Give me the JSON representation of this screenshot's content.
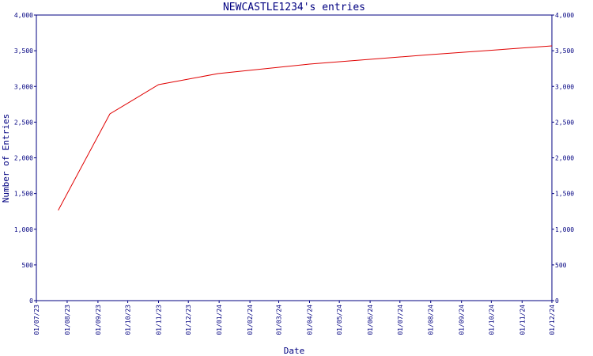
{
  "chart_data": {
    "type": "line",
    "title": "NEWCASTLE1234's entries",
    "x_label": "Date",
    "y_label": "Number of Entries",
    "color": "#e00000",
    "x": [
      "2023-07-23",
      "2023-09-13",
      "2023-11-01",
      "2023-12-31",
      "2024-04-01",
      "2024-08-01",
      "2024-12-01"
    ],
    "values": [
      1265,
      2615,
      3025,
      3180,
      3313,
      3446,
      3568
    ],
    "xlim": [
      "2023-07-01",
      "2024-12-01"
    ],
    "xticks": [
      {
        "value": "2023-07-01",
        "label": "01/07/23"
      },
      {
        "value": "2023-08-01",
        "label": "01/08/23"
      },
      {
        "value": "2023-09-01",
        "label": "01/09/23"
      },
      {
        "value": "2023-10-01",
        "label": "01/10/23"
      },
      {
        "value": "2023-11-01",
        "label": "01/11/23"
      },
      {
        "value": "2023-12-01",
        "label": "01/12/23"
      },
      {
        "value": "2024-01-01",
        "label": "01/01/24"
      },
      {
        "value": "2024-02-01",
        "label": "01/02/24"
      },
      {
        "value": "2024-03-01",
        "label": "01/03/24"
      },
      {
        "value": "2024-04-01",
        "label": "01/04/24"
      },
      {
        "value": "2024-05-01",
        "label": "01/05/24"
      },
      {
        "value": "2024-06-01",
        "label": "01/06/24"
      },
      {
        "value": "2024-07-01",
        "label": "01/07/24"
      },
      {
        "value": "2024-08-01",
        "label": "01/08/24"
      },
      {
        "value": "2024-09-01",
        "label": "01/09/24"
      },
      {
        "value": "2024-10-01",
        "label": "01/10/24"
      },
      {
        "value": "2024-11-01",
        "label": "01/11/24"
      },
      {
        "value": "2024-12-01",
        "label": "01/12/24"
      }
    ],
    "ylim": [
      0,
      4000
    ],
    "yticks": [
      0,
      500,
      {
        "value": 1000,
        "label": "1,000"
      },
      {
        "value": 1500,
        "label": "1,500"
      },
      {
        "value": 2000,
        "label": "2,000"
      },
      {
        "value": 2500,
        "label": "2,500"
      },
      {
        "value": 3000,
        "label": "3,000"
      },
      {
        "value": 3500,
        "label": "3,500"
      },
      {
        "value": 4000,
        "label": "4,000"
      }
    ],
    "right_axis": true
  }
}
